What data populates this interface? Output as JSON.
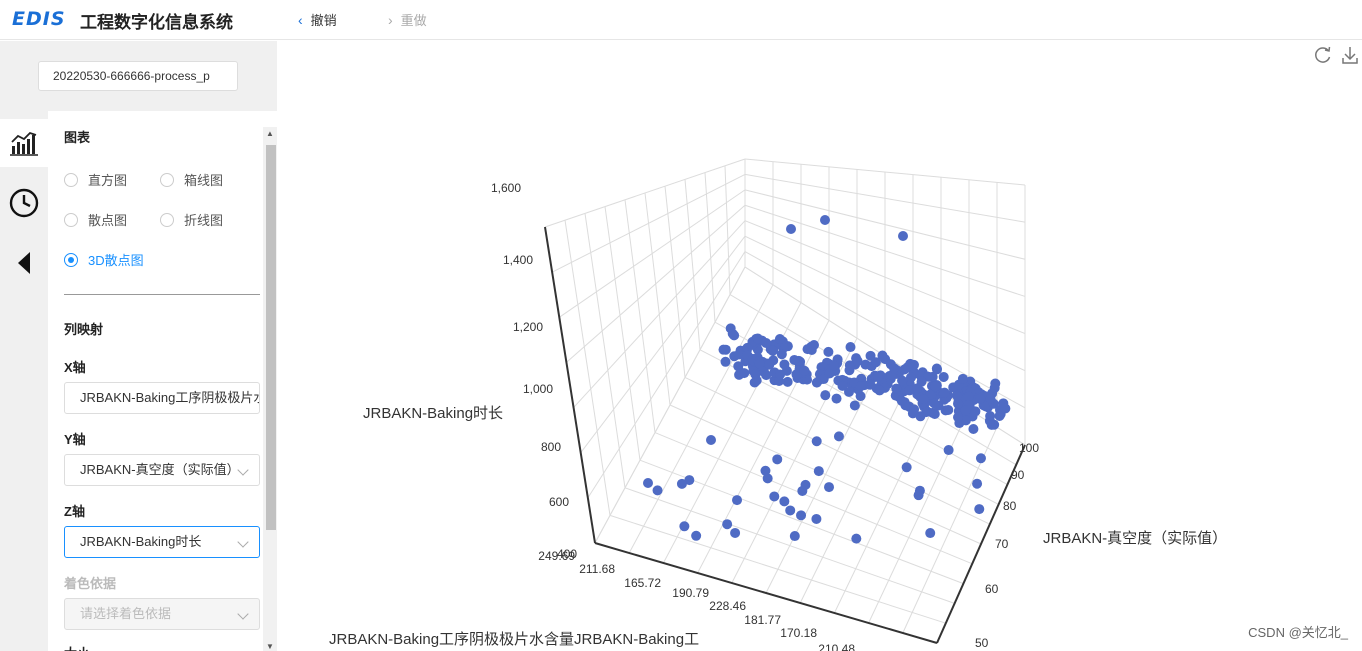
{
  "header": {
    "logo": "EDIS",
    "title": "工程数字化信息系统",
    "undo_label": "撤销",
    "redo_label": "重做"
  },
  "file": {
    "value": "20220530-666666-process_p"
  },
  "sidebar_icons": [
    "chart-icon",
    "history-clock-icon",
    "collapse-left-icon"
  ],
  "config": {
    "chart_section": "图表",
    "chart_types": [
      {
        "label": "直方图",
        "checked": false
      },
      {
        "label": "箱线图",
        "checked": false
      },
      {
        "label": "散点图",
        "checked": false
      },
      {
        "label": "折线图",
        "checked": false
      },
      {
        "label": "3D散点图",
        "checked": true
      }
    ],
    "mapping_section": "列映射",
    "x_label": "X轴",
    "x_value": "JRBAKN-Baking工序阴极极片水含量",
    "y_label": "Y轴",
    "y_value": "JRBAKN-真空度（实际值）",
    "z_label": "Z轴",
    "z_value": "JRBAKN-Baking时长",
    "color_label": "着色依据",
    "color_placeholder": "请选择着色依据",
    "size_label": "大小"
  },
  "chart_data": {
    "type": "scatter3d",
    "z_axis_label": "JRBAKN-Baking时长",
    "y_axis_label": "JRBAKN-真空度（实际值）",
    "x_axis_label": "JRBAKN-Baking工序阴极极片水含量JRBAKN-Baking工",
    "z_ticks": [
      "1,600",
      "1,400",
      "1,200",
      "1,000",
      "800",
      "600",
      "400"
    ],
    "y_ticks": [
      "100",
      "90",
      "80",
      "70",
      "60",
      "50"
    ],
    "x_ticks": [
      "249.69",
      "211.68",
      "165.72",
      "190.79",
      "228.46",
      "181.77",
      "170.18",
      "210.48"
    ],
    "point_color": "#4f6bc4",
    "point_count": 320
  },
  "footer": {
    "credit": "CSDN @关忆北_"
  }
}
